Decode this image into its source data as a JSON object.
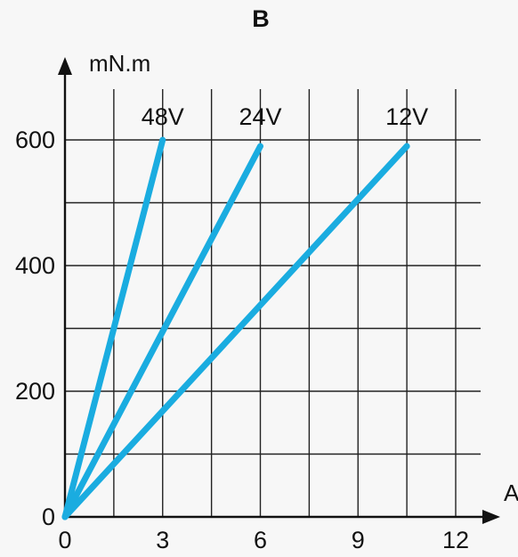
{
  "chart_data": {
    "type": "line",
    "title": "B",
    "xlabel": "A",
    "ylabel": "mN.m",
    "xlim": [
      0,
      12.6
    ],
    "ylim": [
      0,
      600
    ],
    "x_ticks": [
      0,
      3,
      6,
      9,
      12
    ],
    "y_ticks": [
      0,
      200,
      400,
      600
    ],
    "x_minor_grid": [
      1.5,
      4.5,
      7.5,
      10.5
    ],
    "y_minor_grid": [
      100,
      300,
      500
    ],
    "grid": true,
    "series": [
      {
        "name": "48V",
        "x": [
          0,
          3
        ],
        "y": [
          0,
          600
        ],
        "color": "#1aace0"
      },
      {
        "name": "24V",
        "x": [
          0,
          6
        ],
        "y": [
          0,
          590
        ],
        "color": "#1aace0"
      },
      {
        "name": "12V",
        "x": [
          0,
          10.5
        ],
        "y": [
          0,
          590
        ],
        "color": "#1aace0"
      }
    ]
  }
}
